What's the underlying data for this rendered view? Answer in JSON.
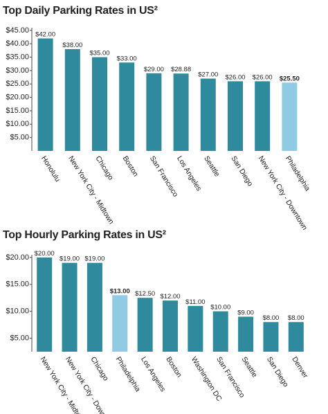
{
  "chart_data": [
    {
      "type": "bar",
      "title": "Top Daily Parking Rates in US²",
      "categories": [
        "Honolulu",
        "New York City - Midtown",
        "Chicago",
        "Boston",
        "San Francisco",
        "Los Angeles",
        "Seattle",
        "San Diego",
        "New York City - Downtown",
        "Philadelphia"
      ],
      "values": [
        42,
        38,
        35,
        33,
        29,
        28.88,
        27,
        26,
        26,
        25.5
      ],
      "value_labels": [
        "$42.00",
        "$38.00",
        "$35.00",
        "$33.00",
        "$29.00",
        "$28.88",
        "$27.00",
        "$26.00",
        "$26.00",
        "$25.50"
      ],
      "color": "#2e8a9c",
      "colors": [
        "#2e8a9c",
        "#2e8a9c",
        "#2e8a9c",
        "#2e8a9c",
        "#2e8a9c",
        "#2e8a9c",
        "#2e8a9c",
        "#2e8a9c",
        "#2e8a9c",
        "#8fcbe2"
      ],
      "ylim": [
        0,
        46
      ],
      "yticks": [
        {
          "value": 5,
          "label": "$5.00"
        },
        {
          "value": 10,
          "label": "$10.00"
        },
        {
          "value": 15,
          "label": "$15.00"
        },
        {
          "value": 20,
          "label": "$20.00"
        },
        {
          "value": 25,
          "label": "$25.00"
        },
        {
          "value": 30,
          "label": "$30.00"
        },
        {
          "value": 35,
          "label": "$35.00"
        },
        {
          "value": 40,
          "label": "$40.00"
        },
        {
          "value": 45,
          "label": "$45.00"
        }
      ]
    },
    {
      "type": "bar",
      "title": "Top Hourly Parking Rates in US²",
      "categories": [
        "New York City - Midtown",
        "New York City - Downtown",
        "Chicago",
        "Philadelphia",
        "Los Angeles",
        "Boston",
        "Washington DC",
        "San Francisco",
        "Seattle",
        "San Diego",
        "Denver"
      ],
      "values": [
        20,
        19,
        19,
        13,
        12.5,
        12,
        11,
        10,
        9,
        8,
        8
      ],
      "value_labels": [
        "$20.00",
        "$19.00",
        "$19.00",
        "$13.00",
        "$12.50",
        "$12.00",
        "$11.00",
        "$10.00",
        "$9.00",
        "$8.00",
        "$8.00"
      ],
      "color": "#2e8a9c",
      "colors": [
        "#2e8a9c",
        "#2e8a9c",
        "#2e8a9c",
        "#8fcbe2",
        "#2e8a9c",
        "#2e8a9c",
        "#2e8a9c",
        "#2e8a9c",
        "#2e8a9c",
        "#2e8a9c",
        "#2e8a9c"
      ],
      "ylim": [
        2.5,
        20.5
      ],
      "yticks": [
        {
          "value": 5,
          "label": "$5.00"
        },
        {
          "value": 10,
          "label": "$10.00"
        },
        {
          "value": 15,
          "label": "$15.00"
        },
        {
          "value": 20,
          "label": "$20.00"
        }
      ]
    }
  ]
}
